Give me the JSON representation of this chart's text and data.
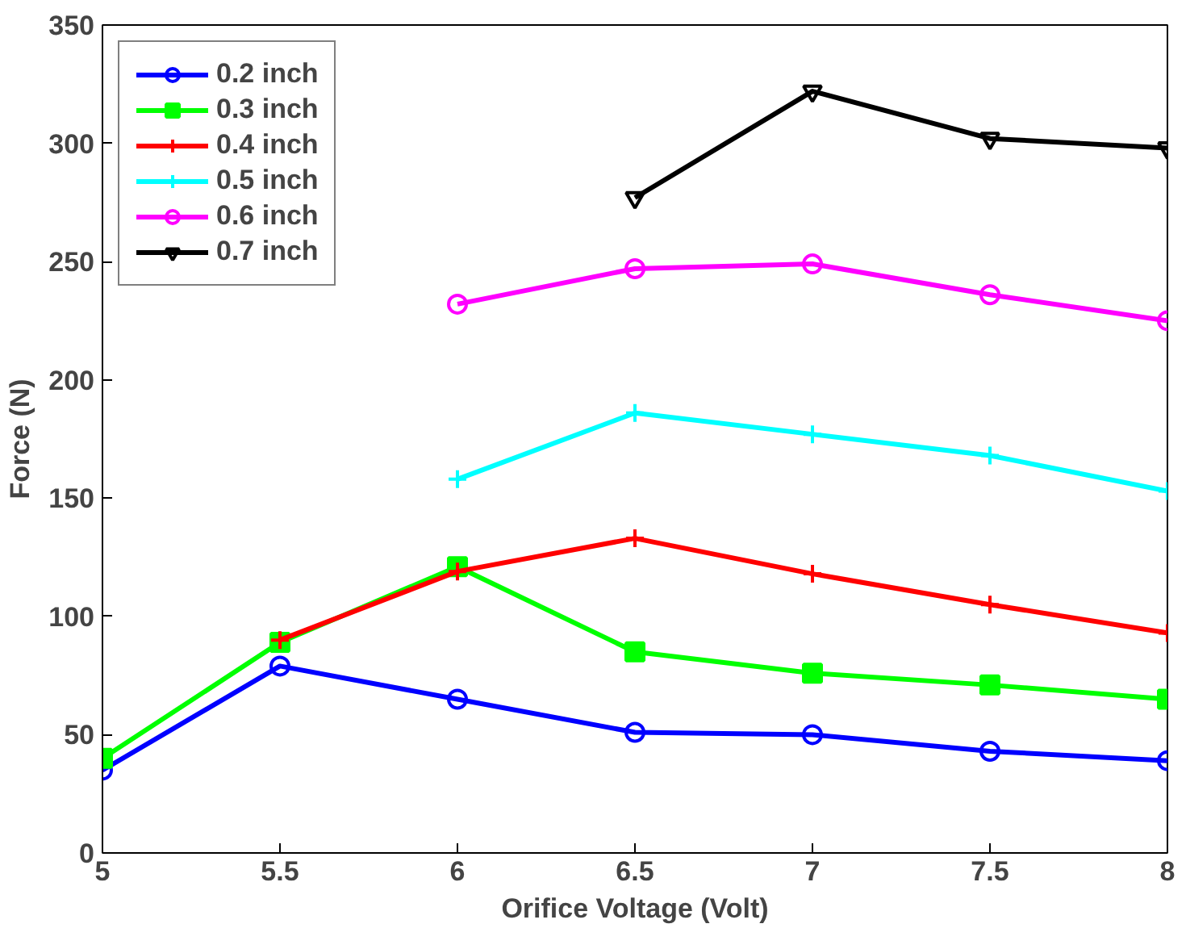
{
  "chart_data": {
    "type": "line",
    "xlabel": "Orifice Voltage (Volt)",
    "ylabel": "Force (N)",
    "x": [
      5,
      5.5,
      6,
      6.5,
      7,
      7.5,
      8
    ],
    "xlim": [
      5,
      8
    ],
    "xticks": [
      5,
      5.5,
      6,
      6.5,
      7,
      7.5,
      8
    ],
    "ylim": [
      0,
      350
    ],
    "yticks": [
      0,
      50,
      100,
      150,
      200,
      250,
      300,
      350
    ],
    "grid": false,
    "legend": "top left",
    "line_style": "solid",
    "series": [
      {
        "name": "0.2 inch",
        "color": "#0000ff",
        "marker": "circle",
        "values": [
          35,
          79,
          65,
          51,
          50,
          43,
          39
        ]
      },
      {
        "name": "0.3 inch",
        "color": "#00ff00",
        "marker": "square",
        "values": [
          40,
          89,
          121,
          85,
          76,
          71,
          65
        ]
      },
      {
        "name": "0.4 inch",
        "color": "#ff0000",
        "marker": "cross",
        "values": [
          null,
          90,
          119,
          133,
          118,
          105,
          93
        ]
      },
      {
        "name": "0.5 inch",
        "color": "#00ffff",
        "marker": "cross",
        "values": [
          null,
          null,
          158,
          186,
          177,
          168,
          153
        ]
      },
      {
        "name": "0.6 inch",
        "color": "#ff00ff",
        "marker": "circle",
        "values": [
          null,
          null,
          232,
          247,
          249,
          236,
          225
        ]
      },
      {
        "name": "0.7 inch",
        "color": "#000000",
        "marker": "triangle",
        "values": [
          null,
          null,
          null,
          277,
          322,
          302,
          298
        ]
      }
    ]
  }
}
